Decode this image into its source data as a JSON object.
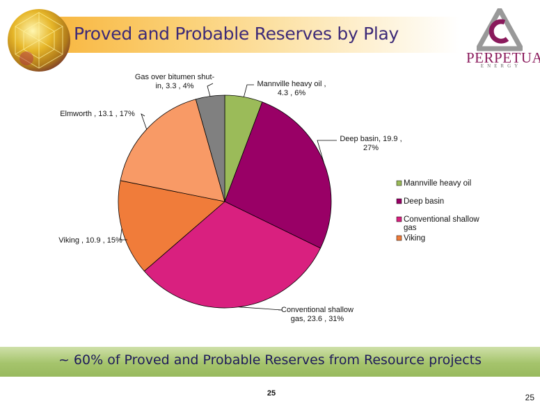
{
  "header": {
    "title": "Proved and Probable Reserves by Play"
  },
  "logo": {
    "name": "PERPETUAL",
    "sub": "ENERGY"
  },
  "chart_data": {
    "type": "pie",
    "title": "",
    "start_angle_deg": 0,
    "direction": "clockwise",
    "slices": [
      {
        "name": "Mannville heavy oil",
        "value": 4.3,
        "percent": 6,
        "color": "#9bbb59",
        "label_lines": [
          "Mannville heavy oil ,",
          "4.3 , 6%"
        ]
      },
      {
        "name": "Deep basin",
        "value": 19.9,
        "percent": 27,
        "color": "#990066",
        "label_lines": [
          "Deep basin,  19.9 ,",
          "27%"
        ]
      },
      {
        "name": "Conventional shallow gas",
        "value": 23.6,
        "percent": 31,
        "color": "#d9207f",
        "label_lines": [
          "Conventional shallow",
          "gas,  23.6 , 31%"
        ]
      },
      {
        "name": "Viking",
        "value": 10.9,
        "percent": 15,
        "color": "#f07c3a",
        "label_lines": [
          "Viking ,  10.9 , 15%"
        ]
      },
      {
        "name": "Elmworth",
        "value": 13.1,
        "percent": 17,
        "color": "#f89a66",
        "label_lines": [
          "Elmworth ,  13.1 , 17%"
        ]
      },
      {
        "name": "Gas over bitumen shut-in",
        "value": 3.3,
        "percent": 4,
        "color": "#808080",
        "label_lines": [
          "Gas over bitumen shut-",
          "in,  3.3 , 4%"
        ]
      }
    ],
    "legend": {
      "placement": "right",
      "entries": [
        {
          "lines": [
            "Mannville heavy oil"
          ],
          "color": "#9bbb59"
        },
        {
          "lines": [
            "Deep basin"
          ],
          "color": "#990066"
        },
        {
          "lines": [
            "Conventional shallow",
            "gas"
          ],
          "color": "#d9207f"
        },
        {
          "lines": [
            "Viking"
          ],
          "color": "#f07c3a"
        }
      ]
    }
  },
  "banner": {
    "text": "~ 60% of Proved and Probable Reserves from Resource projects"
  },
  "footer": {
    "page_center": "25",
    "page_right": "25"
  }
}
